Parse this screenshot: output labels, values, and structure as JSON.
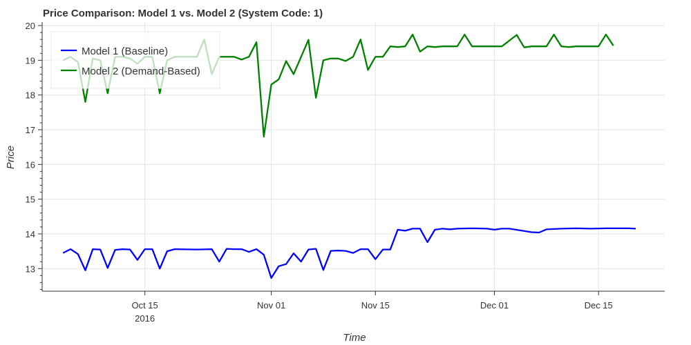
{
  "chart_data": {
    "type": "line",
    "title": "Price Comparison: Model 1 vs. Model 2 (System Code: 1)",
    "xlabel": "Time",
    "ylabel": "Price",
    "x_axis_type": "datetime",
    "xlim": [
      "2016-10-05",
      "2016-12-20"
    ],
    "ylim": [
      12.35,
      20.1
    ],
    "y_ticks": [
      13,
      14,
      15,
      16,
      17,
      18,
      19,
      20
    ],
    "x_ticks": [
      {
        "date": "2016-10-15",
        "label": "Oct 15",
        "sublabel": "2016"
      },
      {
        "date": "2016-11-01",
        "label": "Nov 01",
        "sublabel": ""
      },
      {
        "date": "2016-11-15",
        "label": "Nov 15",
        "sublabel": ""
      },
      {
        "date": "2016-12-01",
        "label": "Dec 01",
        "sublabel": ""
      },
      {
        "date": "2016-12-15",
        "label": "Dec 15",
        "sublabel": ""
      }
    ],
    "grid": true,
    "legend_position": "top-left",
    "series": [
      {
        "name": "Model 1 (Baseline)",
        "color": "#0000ff",
        "points": [
          [
            "2016-10-04",
            13.45
          ],
          [
            "2016-10-05",
            13.56
          ],
          [
            "2016-10-06",
            13.42
          ],
          [
            "2016-10-07",
            12.95
          ],
          [
            "2016-10-08",
            13.56
          ],
          [
            "2016-10-09",
            13.55
          ],
          [
            "2016-10-10",
            13.02
          ],
          [
            "2016-10-11",
            13.54
          ],
          [
            "2016-10-12",
            13.56
          ],
          [
            "2016-10-13",
            13.55
          ],
          [
            "2016-10-14",
            13.25
          ],
          [
            "2016-10-15",
            13.56
          ],
          [
            "2016-10-16",
            13.56
          ],
          [
            "2016-10-17",
            13.0
          ],
          [
            "2016-10-18",
            13.5
          ],
          [
            "2016-10-19",
            13.56
          ],
          [
            "2016-10-22",
            13.55
          ],
          [
            "2016-10-24",
            13.56
          ],
          [
            "2016-10-25",
            13.2
          ],
          [
            "2016-10-26",
            13.57
          ],
          [
            "2016-10-27",
            13.56
          ],
          [
            "2016-10-28",
            13.56
          ],
          [
            "2016-10-29",
            13.48
          ],
          [
            "2016-10-30",
            13.56
          ],
          [
            "2016-10-31",
            13.4
          ],
          [
            "2016-11-01",
            12.73
          ],
          [
            "2016-11-02",
            13.07
          ],
          [
            "2016-11-03",
            13.13
          ],
          [
            "2016-11-04",
            13.44
          ],
          [
            "2016-11-05",
            13.2
          ],
          [
            "2016-11-06",
            13.55
          ],
          [
            "2016-11-07",
            13.57
          ],
          [
            "2016-11-08",
            12.96
          ],
          [
            "2016-11-09",
            13.51
          ],
          [
            "2016-11-10",
            13.52
          ],
          [
            "2016-11-11",
            13.51
          ],
          [
            "2016-11-12",
            13.45
          ],
          [
            "2016-11-13",
            13.56
          ],
          [
            "2016-11-14",
            13.56
          ],
          [
            "2016-11-15",
            13.27
          ],
          [
            "2016-11-16",
            13.55
          ],
          [
            "2016-11-17",
            13.55
          ],
          [
            "2016-11-18",
            14.12
          ],
          [
            "2016-11-19",
            14.09
          ],
          [
            "2016-11-20",
            14.15
          ],
          [
            "2016-11-21",
            14.15
          ],
          [
            "2016-11-22",
            13.76
          ],
          [
            "2016-11-23",
            14.12
          ],
          [
            "2016-11-24",
            14.15
          ],
          [
            "2016-11-25",
            14.13
          ],
          [
            "2016-11-26",
            14.15
          ],
          [
            "2016-11-28",
            14.16
          ],
          [
            "2016-11-30",
            14.15
          ],
          [
            "2016-12-01",
            14.12
          ],
          [
            "2016-12-02",
            14.15
          ],
          [
            "2016-12-03",
            14.15
          ],
          [
            "2016-12-06",
            14.05
          ],
          [
            "2016-12-07",
            14.04
          ],
          [
            "2016-12-08",
            14.13
          ],
          [
            "2016-12-10",
            14.15
          ],
          [
            "2016-12-12",
            14.16
          ],
          [
            "2016-12-14",
            14.15
          ],
          [
            "2016-12-16",
            14.16
          ],
          [
            "2016-12-19",
            14.16
          ],
          [
            "2016-12-20",
            14.15
          ]
        ]
      },
      {
        "name": "Model 2 (Demand-Based)",
        "color": "#008000",
        "points": [
          [
            "2016-10-04",
            19.0
          ],
          [
            "2016-10-05",
            19.1
          ],
          [
            "2016-10-06",
            18.95
          ],
          [
            "2016-10-07",
            17.8
          ],
          [
            "2016-10-08",
            19.05
          ],
          [
            "2016-10-09",
            19.0
          ],
          [
            "2016-10-10",
            18.05
          ],
          [
            "2016-10-11",
            19.1
          ],
          [
            "2016-10-12",
            19.1
          ],
          [
            "2016-10-13",
            19.05
          ],
          [
            "2016-10-14",
            18.9
          ],
          [
            "2016-10-15",
            19.1
          ],
          [
            "2016-10-16",
            19.1
          ],
          [
            "2016-10-17",
            18.05
          ],
          [
            "2016-10-18",
            19.0
          ],
          [
            "2016-10-19",
            19.1
          ],
          [
            "2016-10-22",
            19.1
          ],
          [
            "2016-10-23",
            19.6
          ],
          [
            "2016-10-24",
            18.6
          ],
          [
            "2016-10-25",
            19.1
          ],
          [
            "2016-10-26",
            19.1
          ],
          [
            "2016-10-27",
            19.1
          ],
          [
            "2016-10-28",
            19.02
          ],
          [
            "2016-10-29",
            19.1
          ],
          [
            "2016-10-30",
            19.52
          ],
          [
            "2016-10-31",
            16.8
          ],
          [
            "2016-11-01",
            18.3
          ],
          [
            "2016-11-02",
            18.45
          ],
          [
            "2016-11-03",
            18.98
          ],
          [
            "2016-11-04",
            18.6
          ],
          [
            "2016-11-06",
            19.59
          ],
          [
            "2016-11-07",
            17.92
          ],
          [
            "2016-11-08",
            19.0
          ],
          [
            "2016-11-09",
            19.05
          ],
          [
            "2016-11-10",
            19.05
          ],
          [
            "2016-11-11",
            18.98
          ],
          [
            "2016-11-12",
            19.1
          ],
          [
            "2016-11-13",
            19.6
          ],
          [
            "2016-11-14",
            18.72
          ],
          [
            "2016-11-15",
            19.1
          ],
          [
            "2016-11-16",
            19.1
          ],
          [
            "2016-11-17",
            19.4
          ],
          [
            "2016-11-18",
            19.38
          ],
          [
            "2016-11-19",
            19.4
          ],
          [
            "2016-11-20",
            19.74
          ],
          [
            "2016-11-21",
            19.25
          ],
          [
            "2016-11-22",
            19.4
          ],
          [
            "2016-11-23",
            19.38
          ],
          [
            "2016-11-24",
            19.4
          ],
          [
            "2016-11-26",
            19.4
          ],
          [
            "2016-11-27",
            19.74
          ],
          [
            "2016-11-28",
            19.4
          ],
          [
            "2016-11-30",
            19.4
          ],
          [
            "2016-12-02",
            19.4
          ],
          [
            "2016-12-04",
            19.73
          ],
          [
            "2016-12-05",
            19.37
          ],
          [
            "2016-12-06",
            19.4
          ],
          [
            "2016-12-08",
            19.4
          ],
          [
            "2016-12-09",
            19.74
          ],
          [
            "2016-12-10",
            19.4
          ],
          [
            "2016-12-11",
            19.38
          ],
          [
            "2016-12-12",
            19.4
          ],
          [
            "2016-12-15",
            19.4
          ],
          [
            "2016-12-16",
            19.74
          ],
          [
            "2016-12-17",
            19.42
          ]
        ]
      }
    ]
  }
}
